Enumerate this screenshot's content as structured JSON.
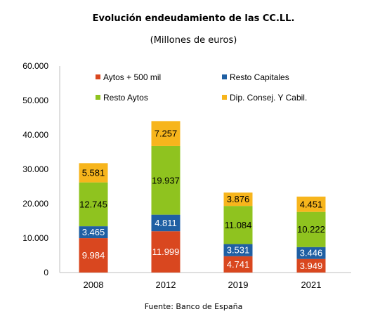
{
  "chart_data": {
    "type": "bar",
    "stacked": true,
    "title": "Evolución endeudamiento de las CC.LL.",
    "subtitle": "(Millones de euros)",
    "source": "Fuente: Banco de España",
    "categories": [
      "2008",
      "2012",
      "2019",
      "2021"
    ],
    "series": [
      {
        "name": "Aytos + 500 mil",
        "color": "#d9471f",
        "label_color": "#ffffff",
        "values": [
          9984,
          11999,
          4741,
          3949
        ],
        "labels": [
          "9.984",
          "11.999",
          "4.741",
          "3.949"
        ]
      },
      {
        "name": "Resto Capitales",
        "color": "#1f5fa3",
        "label_color": "#ffffff",
        "values": [
          3465,
          4811,
          3531,
          3446
        ],
        "labels": [
          "3.465",
          "4.811",
          "3.531",
          "3.446"
        ]
      },
      {
        "name": "Resto Aytos",
        "color": "#8fc31f",
        "label_color": "#000000",
        "values": [
          12745,
          19937,
          11084,
          10222
        ],
        "labels": [
          "12.745",
          "19.937",
          "11.084",
          "10.222"
        ]
      },
      {
        "name": "Dip. Consej. Y Cabil.",
        "color": "#f7b51c",
        "label_color": "#000000",
        "values": [
          5581,
          7257,
          3876,
          4451
        ],
        "labels": [
          "5.581",
          "7.257",
          "3.876",
          "4.451"
        ]
      }
    ],
    "ylim": [
      0,
      60000
    ],
    "yticks": [
      0,
      10000,
      20000,
      30000,
      40000,
      50000,
      60000
    ],
    "ytick_labels": [
      "0",
      "10.000",
      "20.000",
      "30.000",
      "40.000",
      "50.000",
      "60.000"
    ],
    "grid": false,
    "legend_position": "top"
  }
}
